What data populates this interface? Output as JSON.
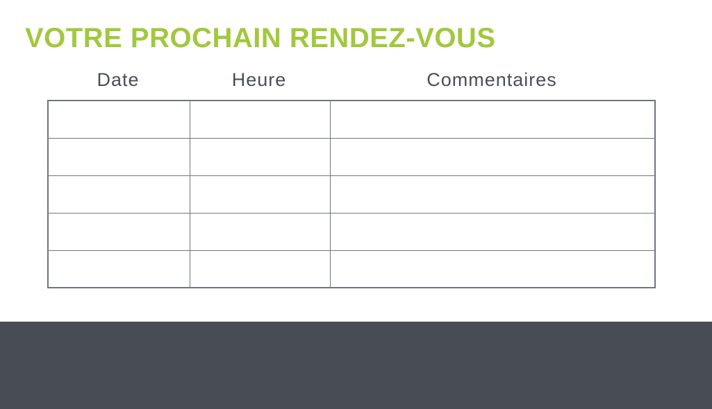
{
  "page": {
    "title": "VOTRE PROCHAIN RENDEZ-VOUS",
    "colors": {
      "title_green": "#a2c83e",
      "header_text": "#4a4e58",
      "table_border": "#6f747c",
      "footer_bg": "#484c55",
      "page_bg": "#ffffff"
    }
  },
  "table": {
    "columns": [
      {
        "label": "Date"
      },
      {
        "label": "Heure"
      },
      {
        "label": "Commentaires"
      }
    ],
    "rows": [
      {
        "date": "",
        "heure": "",
        "commentaires": ""
      },
      {
        "date": "",
        "heure": "",
        "commentaires": ""
      },
      {
        "date": "",
        "heure": "",
        "commentaires": ""
      },
      {
        "date": "",
        "heure": "",
        "commentaires": ""
      },
      {
        "date": "",
        "heure": "",
        "commentaires": ""
      }
    ]
  }
}
